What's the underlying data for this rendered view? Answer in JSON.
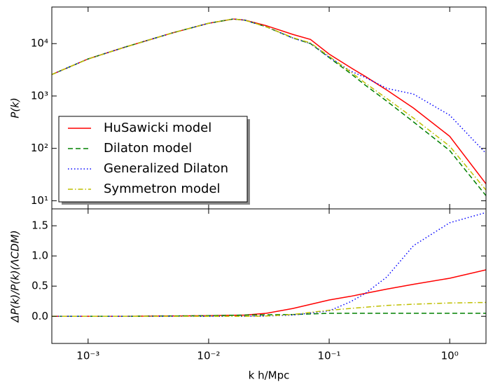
{
  "chart_data": [
    {
      "type": "line",
      "ylabel": "P(k)",
      "xscale": "log",
      "yscale": "log",
      "xlim": [
        0.0005,
        2
      ],
      "xticks": [
        0.001,
        0.01,
        0.1,
        1
      ],
      "ylim": [
        7,
        50000
      ],
      "yticks": [
        {
          "value": 10,
          "label": "10¹"
        },
        {
          "value": 100,
          "label": "10²"
        },
        {
          "value": 1000,
          "label": "10³"
        },
        {
          "value": 10000,
          "label": "10⁴"
        }
      ],
      "legend": "lower left",
      "x": [
        0.0005,
        0.001,
        0.002,
        0.005,
        0.01,
        0.016,
        0.02,
        0.03,
        0.05,
        0.07,
        0.1,
        0.15,
        0.2,
        0.3,
        0.5,
        1,
        2
      ],
      "series": [
        {
          "name": "HuSawicki model",
          "color": "#ff0000",
          "linestyle": "solid",
          "values": [
            2570,
            5100,
            8500,
            16000,
            24500,
            29500,
            28000,
            22000,
            15000,
            12000,
            6300,
            3500,
            2350,
            1300,
            590,
            170,
            21
          ]
        },
        {
          "name": "Dilaton model",
          "color": "#008000",
          "linestyle": "dashed",
          "values": [
            2570,
            5100,
            8500,
            16000,
            24500,
            29500,
            28000,
            21000,
            12800,
            10000,
            5400,
            2700,
            1600,
            800,
            320,
            91,
            12.5
          ]
        },
        {
          "name": "Generalized Dilaton",
          "color": "#0000ff",
          "linestyle": "dotted",
          "values": [
            2570,
            5100,
            8500,
            16000,
            24500,
            29500,
            28000,
            21000,
            12800,
            10000,
            5500,
            3000,
            2250,
            1400,
            1090,
            430,
            80
          ]
        },
        {
          "name": "Symmetron model",
          "color": "#bfbf00",
          "linestyle": "dashdot",
          "values": [
            2570,
            5100,
            8500,
            16000,
            24500,
            29500,
            28000,
            21000,
            13000,
            10300,
            5700,
            2900,
            1750,
            900,
            380,
            110,
            16
          ]
        }
      ]
    },
    {
      "type": "line",
      "xlabel": "k h/Mpc",
      "ylabel": "ΔP(k)/P(k)(ΛCDM)",
      "xscale": "log",
      "xlim": [
        0.0005,
        2
      ],
      "xticks": [
        {
          "value": 0.001,
          "label": "10⁻³"
        },
        {
          "value": 0.01,
          "label": "10⁻²"
        },
        {
          "value": 0.1,
          "label": "10⁻¹"
        },
        {
          "value": 1,
          "label": "10⁰"
        }
      ],
      "ylim": [
        -0.45,
        1.78
      ],
      "yticks": [
        {
          "value": 0,
          "label": "0.0"
        },
        0.5,
        {
          "value": 1,
          "label": "1.0"
        },
        1.5
      ],
      "x": [
        0.0005,
        0.001,
        0.002,
        0.005,
        0.01,
        0.02,
        0.03,
        0.05,
        0.1,
        0.15,
        0.2,
        0.3,
        0.5,
        1,
        2
      ],
      "series": [
        {
          "name": "HuSawicki model",
          "color": "#ff0000",
          "linestyle": "solid",
          "values": [
            0,
            0,
            0,
            0.005,
            0.01,
            0.02,
            0.05,
            0.13,
            0.27,
            0.33,
            0.38,
            0.45,
            0.53,
            0.63,
            0.77
          ]
        },
        {
          "name": "Dilaton model",
          "color": "#008000",
          "linestyle": "dashed",
          "values": [
            0,
            0,
            0,
            0.005,
            0.01,
            0.02,
            0.025,
            0.03,
            0.05,
            0.05,
            0.05,
            0.05,
            0.05,
            0.05,
            0.05
          ]
        },
        {
          "name": "Generalized Dilaton",
          "color": "#0000ff",
          "linestyle": "dotted",
          "values": [
            0,
            0,
            0,
            0,
            0,
            0,
            0.005,
            0.02,
            0.09,
            0.24,
            0.38,
            0.65,
            1.17,
            1.55,
            1.72
          ]
        },
        {
          "name": "Symmetron model",
          "color": "#bfbf00",
          "linestyle": "dashdot",
          "values": [
            0,
            0,
            0,
            0,
            0,
            0,
            0.005,
            0.03,
            0.1,
            0.13,
            0.15,
            0.18,
            0.2,
            0.22,
            0.23
          ]
        }
      ]
    }
  ]
}
